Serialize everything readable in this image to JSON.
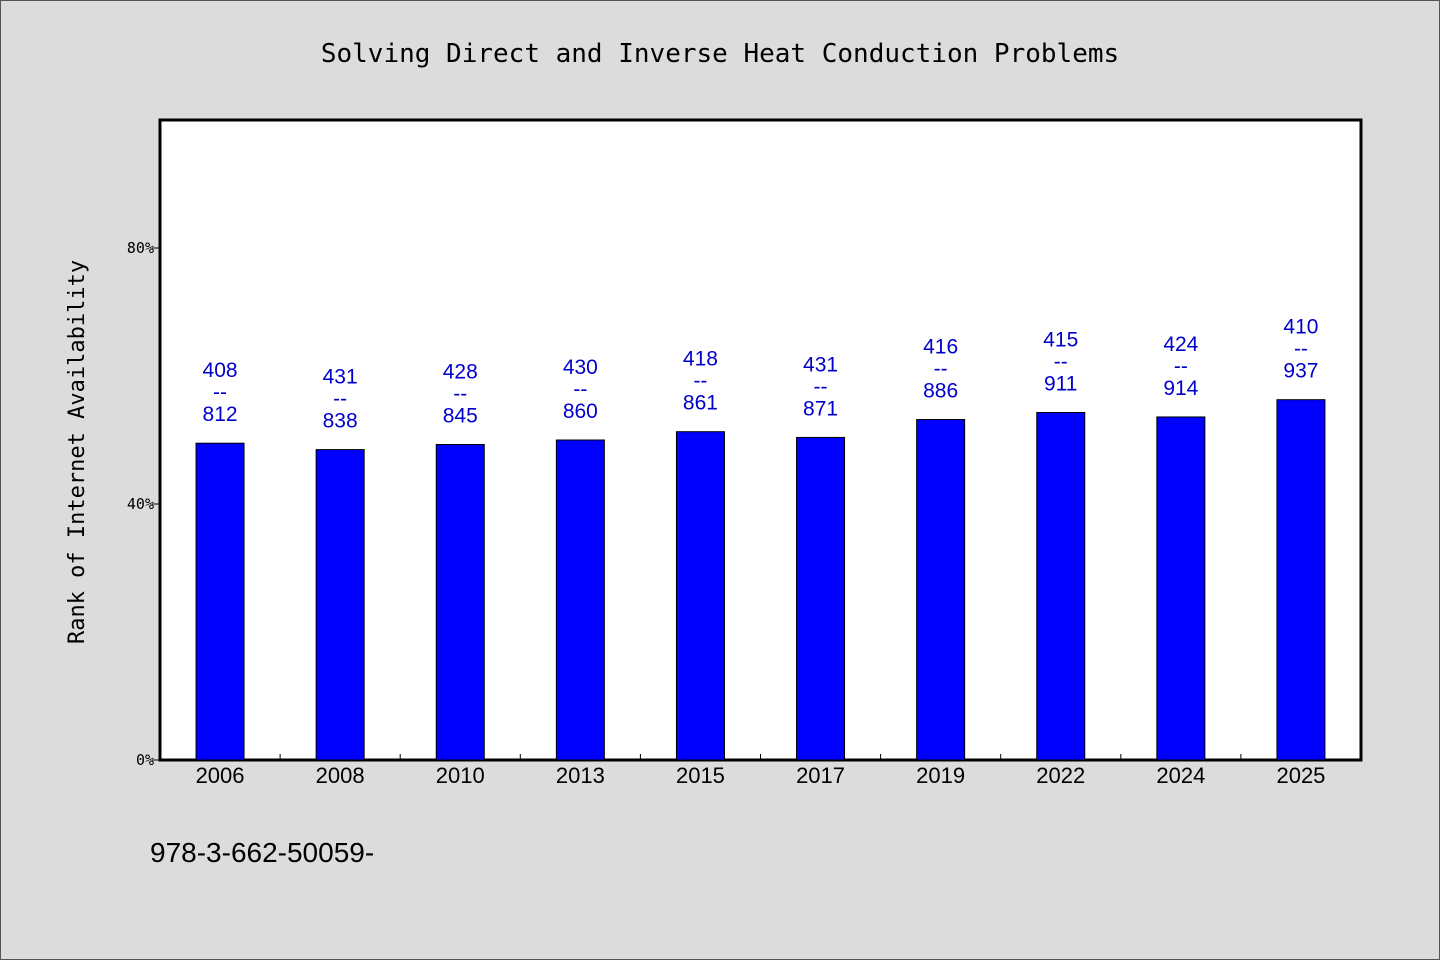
{
  "chart_data": {
    "type": "bar",
    "title": "Solving Direct and Inverse Heat Conduction Problems",
    "xlabel": "",
    "ylabel": "Rank of Internet Availability",
    "ylim": [
      0,
      100
    ],
    "yticks": [
      0,
      40,
      80
    ],
    "ytick_labels": [
      "0%",
      "40%",
      "80%"
    ],
    "categories": [
      "2006",
      "2008",
      "2010",
      "2013",
      "2015",
      "2017",
      "2019",
      "2022",
      "2024",
      "2025"
    ],
    "values": [
      49.5,
      48.5,
      49.3,
      50.0,
      51.3,
      50.4,
      53.2,
      54.3,
      53.6,
      56.3
    ],
    "bar_labels": [
      {
        "top": "408",
        "mid": "--",
        "bottom": "812"
      },
      {
        "top": "431",
        "mid": "--",
        "bottom": "838"
      },
      {
        "top": "428",
        "mid": "--",
        "bottom": "845"
      },
      {
        "top": "430",
        "mid": "--",
        "bottom": "860"
      },
      {
        "top": "418",
        "mid": "--",
        "bottom": "861"
      },
      {
        "top": "431",
        "mid": "--",
        "bottom": "871"
      },
      {
        "top": "416",
        "mid": "--",
        "bottom": "886"
      },
      {
        "top": "415",
        "mid": "--",
        "bottom": "911"
      },
      {
        "top": "424",
        "mid": "--",
        "bottom": "914"
      },
      {
        "top": "410",
        "mid": "--",
        "bottom": "937"
      }
    ],
    "bar_color": "#0000ff",
    "label_color": "#0000cc",
    "plot_background": "#ffffff",
    "figure_background": "#dcdcdc",
    "grid": false,
    "legend": "none"
  },
  "footer": {
    "text": "978-3-662-50059-"
  }
}
